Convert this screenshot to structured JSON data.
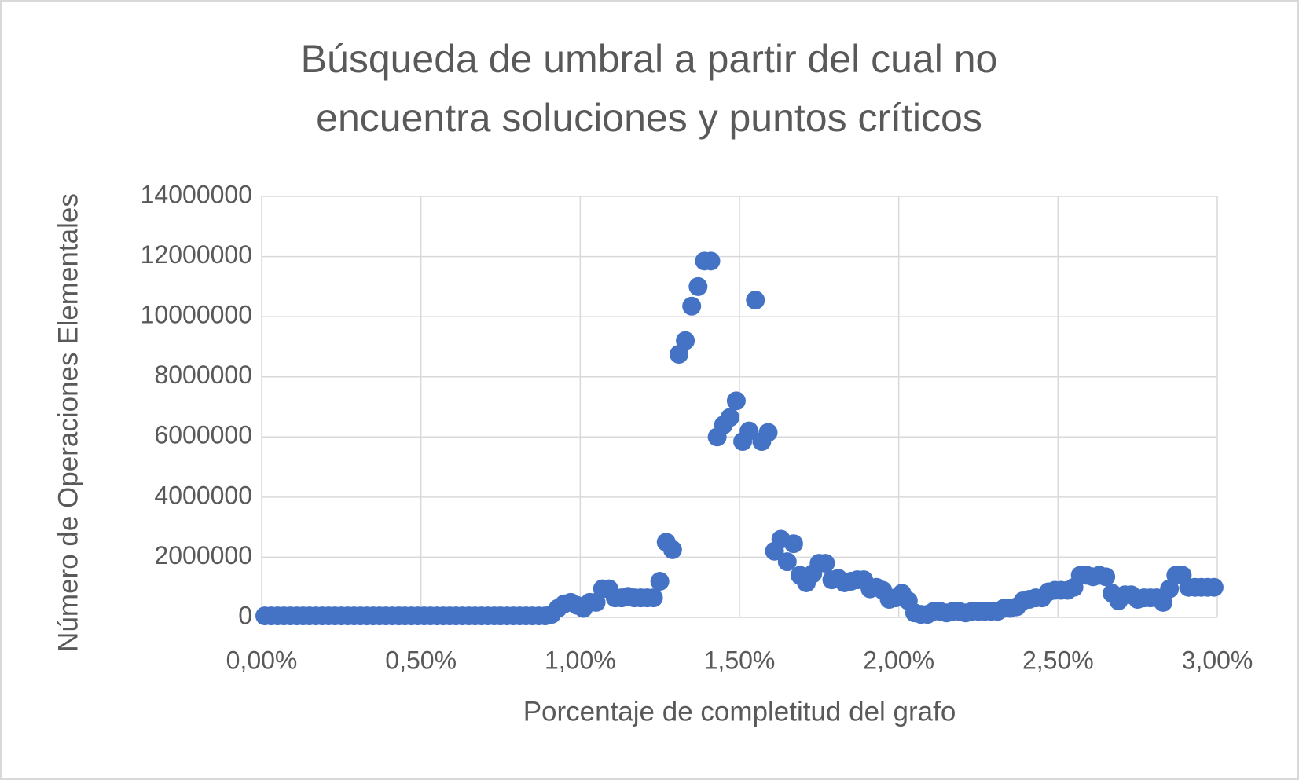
{
  "chart_data": {
    "type": "scatter",
    "title": [
      "Búsqueda de umbral a partir del cual no",
      "encuentra soluciones y puntos críticos"
    ],
    "x_label": "Porcentaje de completitud del grafo",
    "y_label": "Número de Operaciones Elementales",
    "color": "#4472c4",
    "grid": true,
    "xlim": [
      0,
      3
    ],
    "ylim": [
      0,
      14000000
    ],
    "xticks": [
      {
        "value": 0,
        "label": "0,00%"
      },
      {
        "value": 0.5,
        "label": "0,50%"
      },
      {
        "value": 1,
        "label": "1,00%"
      },
      {
        "value": 1.5,
        "label": "1,50%"
      },
      {
        "value": 2,
        "label": "2,00%"
      },
      {
        "value": 2.5,
        "label": "2,50%"
      },
      {
        "value": 3,
        "label": "3,00%"
      }
    ],
    "yticks": [
      0,
      2000000,
      4000000,
      6000000,
      8000000,
      10000000,
      12000000,
      14000000
    ],
    "x": [
      0.01,
      0.03,
      0.05,
      0.07,
      0.09,
      0.11,
      0.13,
      0.15,
      0.17,
      0.19,
      0.21,
      0.23,
      0.25,
      0.27,
      0.29,
      0.31,
      0.33,
      0.35,
      0.37,
      0.39,
      0.41,
      0.43,
      0.45,
      0.47,
      0.49,
      0.51,
      0.53,
      0.55,
      0.57,
      0.59,
      0.61,
      0.63,
      0.65,
      0.67,
      0.69,
      0.71,
      0.73,
      0.75,
      0.77,
      0.79,
      0.81,
      0.83,
      0.85,
      0.87,
      0.89,
      0.91,
      0.93,
      0.95,
      0.97,
      0.99,
      1.01,
      1.03,
      1.05,
      1.07,
      1.09,
      1.11,
      1.13,
      1.15,
      1.17,
      1.19,
      1.21,
      1.23,
      1.25,
      1.27,
      1.29,
      1.31,
      1.33,
      1.35,
      1.37,
      1.39,
      1.41,
      1.43,
      1.45,
      1.47,
      1.49,
      1.51,
      1.53,
      1.55,
      1.57,
      1.59,
      1.61,
      1.63,
      1.65,
      1.67,
      1.69,
      1.71,
      1.73,
      1.75,
      1.77,
      1.79,
      1.81,
      1.83,
      1.85,
      1.87,
      1.89,
      1.91,
      1.93,
      1.95,
      1.97,
      1.99,
      2.01,
      2.03,
      2.05,
      2.07,
      2.09,
      2.11,
      2.13,
      2.15,
      2.17,
      2.19,
      2.21,
      2.23,
      2.25,
      2.27,
      2.29,
      2.31,
      2.33,
      2.35,
      2.37,
      2.39,
      2.41,
      2.43,
      2.45,
      2.47,
      2.49,
      2.51,
      2.53,
      2.55,
      2.57,
      2.59,
      2.61,
      2.63,
      2.65,
      2.67,
      2.69,
      2.71,
      2.73,
      2.75,
      2.77,
      2.79,
      2.81,
      2.83,
      2.85,
      2.87,
      2.89,
      2.91,
      2.93,
      2.95,
      2.97,
      2.99
    ],
    "values": [
      50000,
      50000,
      50000,
      50000,
      50000,
      50000,
      50000,
      50000,
      50000,
      50000,
      50000,
      50000,
      50000,
      50000,
      50000,
      50000,
      50000,
      50000,
      50000,
      50000,
      50000,
      50000,
      50000,
      50000,
      50000,
      50000,
      50000,
      50000,
      50000,
      50000,
      50000,
      50000,
      50000,
      50000,
      50000,
      50000,
      50000,
      50000,
      50000,
      50000,
      50000,
      50000,
      50000,
      50000,
      50000,
      100000,
      300000,
      450000,
      500000,
      400000,
      300000,
      500000,
      500000,
      950000,
      950000,
      650000,
      650000,
      700000,
      650000,
      650000,
      650000,
      650000,
      1200000,
      2500000,
      2250000,
      8750000,
      9200000,
      10350000,
      11000000,
      11850000,
      11850000,
      6000000,
      6400000,
      6650000,
      7200000,
      5850000,
      6200000,
      10550000,
      5850000,
      6150000,
      2200000,
      2600000,
      1850000,
      2450000,
      1400000,
      1150000,
      1450000,
      1800000,
      1800000,
      1250000,
      1300000,
      1150000,
      1200000,
      1250000,
      1250000,
      950000,
      1000000,
      900000,
      600000,
      650000,
      800000,
      550000,
      150000,
      100000,
      100000,
      200000,
      200000,
      150000,
      200000,
      200000,
      150000,
      200000,
      200000,
      200000,
      200000,
      200000,
      300000,
      300000,
      350000,
      550000,
      600000,
      650000,
      650000,
      850000,
      900000,
      900000,
      900000,
      1000000,
      1400000,
      1400000,
      1350000,
      1400000,
      1350000,
      800000,
      550000,
      750000,
      750000,
      600000,
      650000,
      650000,
      650000,
      500000,
      950000,
      1400000,
      1400000,
      1000000,
      1000000,
      1000000,
      1000000,
      1000000
    ]
  }
}
